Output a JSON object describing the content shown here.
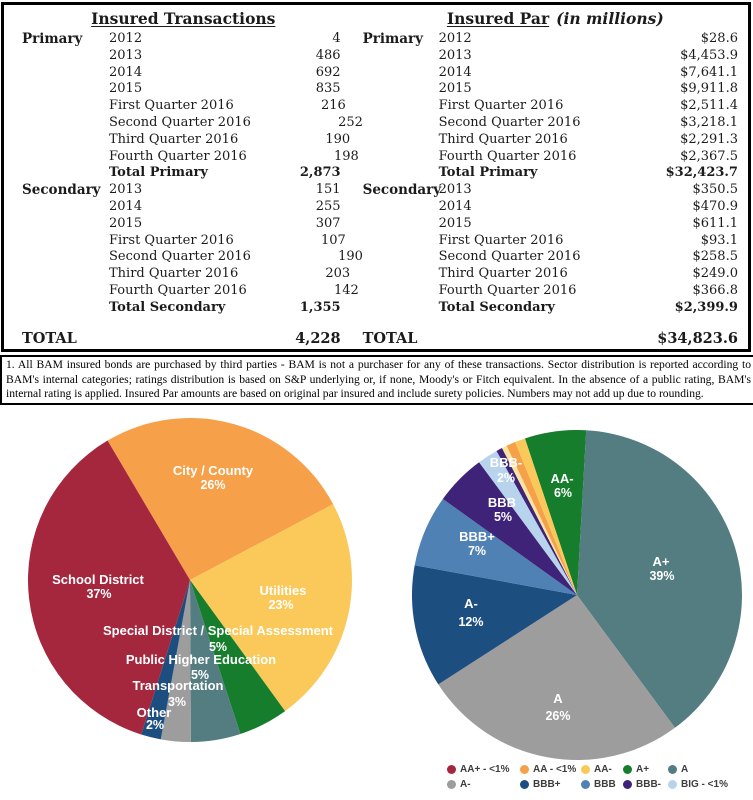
{
  "tables": {
    "transactions": {
      "title": "Insured Transactions",
      "title_suffix": "",
      "groups": [
        {
          "name": "Primary",
          "rows": [
            [
              "2012",
              "4"
            ],
            [
              "2013",
              "486"
            ],
            [
              "2014",
              "692"
            ],
            [
              "2015",
              "835"
            ],
            [
              "First Quarter 2016",
              "216"
            ],
            [
              "Second Quarter 2016",
              "252"
            ],
            [
              "Third Quarter 2016",
              "190"
            ],
            [
              "Fourth Quarter 2016",
              "198"
            ]
          ],
          "total": [
            "Total Primary",
            "2,873"
          ]
        },
        {
          "name": "Secondary",
          "rows": [
            [
              "2013",
              "151"
            ],
            [
              "2014",
              "255"
            ],
            [
              "2015",
              "307"
            ],
            [
              "First Quarter 2016",
              "107"
            ],
            [
              "Second Quarter 2016",
              "190"
            ],
            [
              "Third Quarter 2016",
              "203"
            ],
            [
              "Fourth Quarter 2016",
              "142"
            ]
          ],
          "total": [
            "Total Secondary",
            "1,355"
          ]
        }
      ],
      "grand_total": [
        "TOTAL",
        "4,228"
      ]
    },
    "par": {
      "title": "Insured Par",
      "title_suffix": "(in millions)",
      "groups": [
        {
          "name": "Primary",
          "rows": [
            [
              "2012",
              "$28.6"
            ],
            [
              "2013",
              "$4,453.9"
            ],
            [
              "2014",
              "$7,641.1"
            ],
            [
              "2015",
              "$9,911.8"
            ],
            [
              "First Quarter 2016",
              "$2,511.4"
            ],
            [
              "Second Quarter 2016",
              "$3,218.1"
            ],
            [
              "Third Quarter 2016",
              "$2,291.3"
            ],
            [
              "Fourth Quarter 2016",
              "$2,367.5"
            ]
          ],
          "total": [
            "Total Primary",
            "$32,423.7"
          ]
        },
        {
          "name": "Secondary",
          "rows": [
            [
              "2013",
              "$350.5"
            ],
            [
              "2014",
              "$470.9"
            ],
            [
              "2015",
              "$611.1"
            ],
            [
              "First Quarter 2016",
              "$93.1"
            ],
            [
              "Second Quarter 2016",
              "$258.5"
            ],
            [
              "Third Quarter 2016",
              "$249.0"
            ],
            [
              "Fourth Quarter 2016",
              "$366.8"
            ]
          ],
          "total": [
            "Total Secondary",
            "$2,399.9"
          ]
        }
      ],
      "grand_total": [
        "TOTAL",
        "$34,823.6"
      ]
    }
  },
  "footnote": {
    "text": "1. All BAM insured bonds are purchased by third parties - BAM is not a purchaser for any of these transactions. Sector distribution is reported according to BAM's internal categories; ratings distribution is based on S&P underlying or, if none, Moody's or Fitch equivalent. In the absence of a public rating, BAM's internal rating is applied. Insured Par amounts are based on original par insured and include surety policies. Numbers may not add up due to rounding."
  },
  "colors": {
    "crimson": "#a4273e",
    "orange": "#f6a14a",
    "yellow": "#fac95a",
    "green": "#157d2b",
    "teal": "#537d81",
    "gray": "#9d9d9d",
    "dark_blue": "#1d4e80",
    "medium_blue": "#4f81b4",
    "purple": "#3f2379",
    "light_blue": "#b8d4ec",
    "pale_yellow": "#fbe3a0"
  },
  "chart_data": [
    {
      "type": "pie",
      "name": "sector-distribution",
      "size": 324,
      "start_angle_deg": -30.6,
      "slices": [
        {
          "label": "City / County",
          "pct": 26,
          "pct_label": "26%",
          "color": "#f6a14a",
          "label_xy": [
            185,
            57
          ],
          "pct_xy": [
            185,
            71
          ]
        },
        {
          "label": "Utilities",
          "pct": 23,
          "pct_label": "23%",
          "color": "#fac95a",
          "label_xy": [
            255,
            177
          ],
          "pct_xy": [
            253,
            191
          ]
        },
        {
          "label": "Special District / Special Assessment",
          "pct": 5,
          "pct_label": "5%",
          "color": "#157d2b",
          "label_xy": [
            190,
            217
          ],
          "pct_xy": [
            190,
            233
          ]
        },
        {
          "label": "Public Higher Education",
          "pct": 5,
          "pct_label": "5%",
          "color": "#537d81",
          "label_xy": [
            173,
            246
          ],
          "pct_xy": [
            172,
            261
          ]
        },
        {
          "label": "Transportation",
          "pct": 3,
          "pct_label": "3%",
          "color": "#9d9d9d",
          "label_xy": [
            150,
            272
          ],
          "pct_xy": [
            149,
            288
          ]
        },
        {
          "label": "Other",
          "pct": 2,
          "pct_label": "2%",
          "color": "#1d4e80",
          "label_xy": [
            126,
            299
          ],
          "pct_xy": [
            127,
            311
          ]
        },
        {
          "label": "School District",
          "pct": 37,
          "pct_label": "37%",
          "color": "#a4273e",
          "label_xy": [
            70,
            166
          ],
          "pct_xy": [
            71,
            180
          ]
        }
      ]
    },
    {
      "type": "pie",
      "name": "ratings-distribution",
      "size": 330,
      "start_angle_deg": -18.4,
      "slices": [
        {
          "label": "AA-",
          "pct": 6,
          "pct_label": "6%",
          "color": "#157d2b",
          "label_xy": [
            150,
            53
          ],
          "pct_xy": [
            151,
            67
          ]
        },
        {
          "label": "A+",
          "pct": 39,
          "pct_label": "39%",
          "color": "#537d81",
          "label_xy": [
            249,
            136
          ],
          "pct_xy": [
            250,
            150
          ]
        },
        {
          "label": "A",
          "pct": 26,
          "pct_label": "26%",
          "color": "#9d9d9d",
          "label_xy": [
            146,
            273
          ],
          "pct_xy": [
            146,
            290
          ]
        },
        {
          "label": "A-",
          "pct": 12,
          "pct_label": "12%",
          "color": "#1d4e80",
          "label_xy": [
            59,
            178
          ],
          "pct_xy": [
            59,
            196
          ]
        },
        {
          "label": "BBB+",
          "pct": 7,
          "pct_label": "7%",
          "color": "#4f81b4",
          "label_xy": [
            65,
            111
          ],
          "pct_xy": [
            65,
            125
          ]
        },
        {
          "label": "BBB",
          "pct": 5,
          "pct_label": "5%",
          "color": "#3f2379",
          "label_xy": [
            90,
            77
          ],
          "pct_xy": [
            91,
            91
          ]
        },
        {
          "label": "BBB-",
          "pct": 2,
          "pct_label": "2%",
          "color": "#b8d4ec",
          "label_xy": [
            94,
            37
          ],
          "pct_xy": [
            94,
            52
          ]
        },
        {
          "label": "",
          "pct": 0.6,
          "pct_label": "",
          "color": "#3f2379",
          "label_xy": null,
          "pct_xy": null
        },
        {
          "label": "",
          "pct": 0.5,
          "pct_label": "",
          "color": "#fbe3a0",
          "label_xy": null,
          "pct_xy": null
        },
        {
          "label": "",
          "pct": 0.9,
          "pct_label": "",
          "color": "#f6a14a",
          "label_xy": null,
          "pct_xy": null
        },
        {
          "label": "",
          "pct": 1.0,
          "pct_label": "",
          "color": "#fac95a",
          "label_xy": null,
          "pct_xy": null
        }
      ],
      "legend_rows": [
        [
          {
            "color": "#a4273e",
            "label": "AA+ - <1%"
          },
          {
            "color": "#f6a14a",
            "label": "AA - <1%"
          },
          {
            "color": "#fac95a",
            "label": "AA-"
          },
          {
            "color": "#157d2b",
            "label": "A+"
          },
          {
            "color": "#537d81",
            "label": "A"
          }
        ],
        [
          {
            "color": "#9d9d9d",
            "label": "A-"
          },
          {
            "color": "#1d4e80",
            "label": "BBB+"
          },
          {
            "color": "#4f81b4",
            "label": "BBB"
          },
          {
            "color": "#3f2379",
            "label": "BBB-"
          },
          {
            "color": "#b8d4ec",
            "label": "BIG - <1%"
          }
        ]
      ]
    }
  ]
}
